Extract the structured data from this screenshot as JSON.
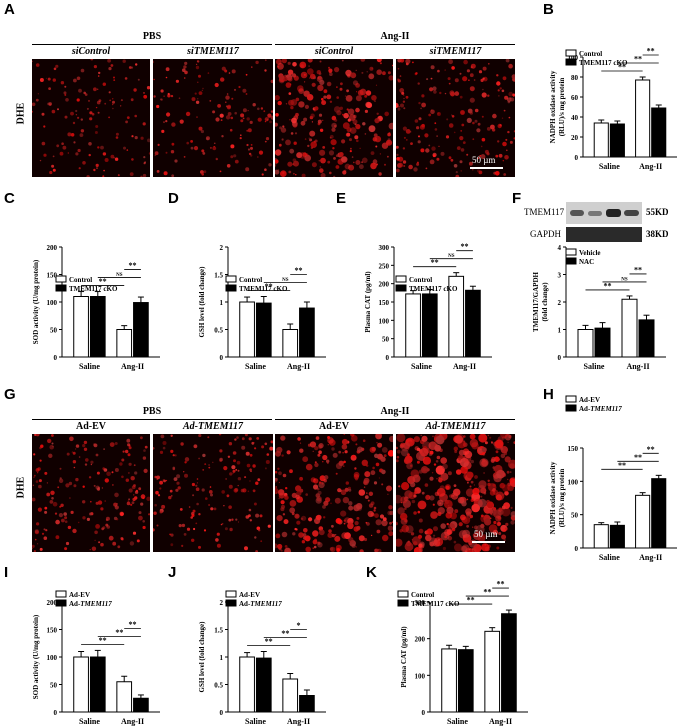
{
  "panels": {
    "A": "A",
    "B": "B",
    "C": "C",
    "D": "D",
    "E": "E",
    "F": "F",
    "G": "G",
    "H": "H",
    "I": "I",
    "J": "J",
    "K": "K"
  },
  "panelA": {
    "groups": [
      "PBS",
      "Ang-II"
    ],
    "columns": [
      "siControl",
      "siTMEM117",
      "siControl",
      "siTMEM117"
    ],
    "row_label": "DHE",
    "scale_bar": "50 µm"
  },
  "panelG": {
    "groups": [
      "PBS",
      "Ang-II"
    ],
    "columns": [
      "Ad-EV",
      "Ad-TMEM117",
      "Ad-EV",
      "Ad-TMEM117"
    ],
    "row_label": "DHE",
    "scale_bar": "50 µm"
  },
  "blot": {
    "rows": [
      {
        "name": "TMEM117",
        "size": "55KD"
      },
      {
        "name": "GAPDH",
        "size": "38KD"
      }
    ]
  },
  "chart_data": [
    {
      "id": "B",
      "type": "bar",
      "categories": [
        "Saline",
        "Ang-II"
      ],
      "series": [
        {
          "name": "Control",
          "values": [
            34,
            77
          ],
          "errors": [
            3,
            3
          ]
        },
        {
          "name": "TMEM117 cKO",
          "values": [
            33,
            49
          ],
          "errors": [
            3,
            3
          ]
        }
      ],
      "ylabel": "NADPH oxidase activity\n(RLU)/s mg protein",
      "ylim": [
        0,
        100
      ],
      "yticks": [
        0,
        20,
        40,
        60,
        80,
        100
      ],
      "annotations": [
        "**",
        "**",
        "**"
      ]
    },
    {
      "id": "C",
      "type": "bar",
      "categories": [
        "Saline",
        "Ang-II"
      ],
      "series": [
        {
          "name": "Control",
          "values": [
            110,
            50
          ],
          "errors": [
            9,
            7
          ]
        },
        {
          "name": "TMEM117 cKO",
          "values": [
            110,
            99
          ],
          "errors": [
            9,
            10
          ]
        }
      ],
      "ylabel": "SOD activity (U/mg protein)",
      "ylim": [
        0,
        200
      ],
      "yticks": [
        0,
        50,
        100,
        150,
        200
      ],
      "annotations": [
        "**",
        "NS",
        "**"
      ]
    },
    {
      "id": "D",
      "type": "bar",
      "categories": [
        "Saline",
        "Ang-II"
      ],
      "series": [
        {
          "name": "Control",
          "values": [
            1.0,
            0.5
          ],
          "errors": [
            0.09,
            0.1
          ]
        },
        {
          "name": "TMEM117 cKO",
          "values": [
            0.98,
            0.89
          ],
          "errors": [
            0.12,
            0.11
          ]
        }
      ],
      "ylabel": "GSH level (fold change)",
      "ylim": [
        0,
        2.0
      ],
      "yticks": [
        0,
        0.5,
        1.0,
        1.5,
        2.0
      ],
      "annotations": [
        "**",
        "NS",
        "**"
      ]
    },
    {
      "id": "E",
      "type": "bar",
      "categories": [
        "Saline",
        "Ang-II"
      ],
      "series": [
        {
          "name": "Control",
          "values": [
            172,
            220
          ],
          "errors": [
            9,
            10
          ]
        },
        {
          "name": "TMEM117 cKO",
          "values": [
            172,
            182
          ],
          "errors": [
            12,
            11
          ]
        }
      ],
      "ylabel": "Plasma CAT (pg/ml)",
      "ylim": [
        0,
        300
      ],
      "yticks": [
        0,
        50,
        100,
        150,
        200,
        250,
        300
      ],
      "annotations": [
        "**",
        "NS",
        "**"
      ]
    },
    {
      "id": "F",
      "type": "bar",
      "categories": [
        "Saline",
        "Ang-II"
      ],
      "series": [
        {
          "name": "Vehicle",
          "values": [
            1.0,
            2.1
          ],
          "errors": [
            0.15,
            0.12
          ]
        },
        {
          "name": "NAC",
          "values": [
            1.05,
            1.35
          ],
          "errors": [
            0.2,
            0.17
          ]
        }
      ],
      "ylabel": "TMEM117/GAPDH\n(fold change)",
      "ylim": [
        0,
        4
      ],
      "yticks": [
        0,
        1,
        2,
        3,
        4
      ],
      "annotations": [
        "**",
        "NS",
        "**"
      ]
    },
    {
      "id": "H",
      "type": "bar",
      "categories": [
        "Saline",
        "Ang-II"
      ],
      "series": [
        {
          "name": "Ad-EV",
          "values": [
            35,
            79
          ],
          "errors": [
            3,
            4
          ]
        },
        {
          "name": "Ad-TMEM117",
          "values": [
            34,
            104
          ],
          "errors": [
            5,
            5
          ]
        }
      ],
      "ylabel": "NADPH oxidase activity\n(RLU)/s mg protein",
      "ylim": [
        0,
        150
      ],
      "yticks": [
        0,
        50,
        100,
        150
      ],
      "annotations": [
        "**",
        "**",
        "**"
      ]
    },
    {
      "id": "I",
      "type": "bar",
      "categories": [
        "Saline",
        "Ang-II"
      ],
      "series": [
        {
          "name": "Ad-EV",
          "values": [
            100,
            55
          ],
          "errors": [
            10,
            10
          ]
        },
        {
          "name": "Ad-TMEM117",
          "values": [
            100,
            25
          ],
          "errors": [
            12,
            6
          ]
        }
      ],
      "ylabel": "SOD activity (U/mg protein)",
      "ylim": [
        0,
        200
      ],
      "yticks": [
        0,
        50,
        100,
        150,
        200
      ],
      "annotations": [
        "**",
        "**",
        "**"
      ]
    },
    {
      "id": "J",
      "type": "bar",
      "categories": [
        "Saline",
        "Ang-II"
      ],
      "series": [
        {
          "name": "Ad-EV",
          "values": [
            1.0,
            0.6
          ],
          "errors": [
            0.08,
            0.1
          ]
        },
        {
          "name": "Ad-TMEM117",
          "values": [
            0.98,
            0.3
          ],
          "errors": [
            0.12,
            0.1
          ]
        }
      ],
      "ylabel": "GSH level (fold change)",
      "ylim": [
        0,
        2.0
      ],
      "yticks": [
        0,
        0.5,
        1.0,
        1.5,
        2.0
      ],
      "annotations": [
        "**",
        "**",
        "*"
      ]
    },
    {
      "id": "K",
      "type": "bar",
      "categories": [
        "Saline",
        "Ang-II"
      ],
      "series": [
        {
          "name": "Control",
          "values": [
            172,
            220
          ],
          "errors": [
            10,
            10
          ]
        },
        {
          "name": "TMEM117 cKO",
          "values": [
            170,
            268
          ],
          "errors": [
            9,
            10
          ]
        }
      ],
      "ylabel": "Plasma CAT (pg/ml)",
      "ylim": [
        0,
        300
      ],
      "yticks": [
        0,
        100,
        200,
        300
      ],
      "annotations": [
        "**",
        "**",
        "**"
      ]
    }
  ]
}
